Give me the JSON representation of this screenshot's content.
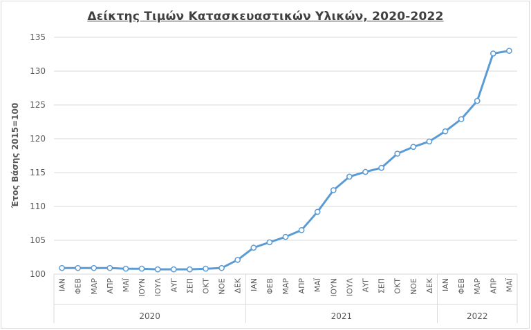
{
  "chart_data": {
    "type": "line",
    "title": "Δείκτης Τιμών Κατασκευαστικών Υλικών, 2020-2022",
    "xlabel": "",
    "ylabel": "Έτος Βάσης 2015=100",
    "ylim": [
      100,
      135
    ],
    "yticks": [
      100,
      105,
      110,
      115,
      120,
      125,
      130,
      135
    ],
    "grid": true,
    "legend": "none",
    "line_color": "#5b9bd5",
    "groups": [
      {
        "label": "2020",
        "count": 12
      },
      {
        "label": "2021",
        "count": 12
      },
      {
        "label": "2022",
        "count": 5
      }
    ],
    "categories": [
      "ΙΑΝ",
      "ΦΕΒ",
      "ΜΑΡ",
      "ΑΠΡ",
      "ΜΑΪ",
      "ΙΟΥΝ",
      "ΙΟΥΛ",
      "ΑΥΓ",
      "ΣΕΠ",
      "ΟΚΤ",
      "ΝΟΕ",
      "ΔΕΚ",
      "ΙΑΝ",
      "ΦΕΒ",
      "ΜΑΡ",
      "ΑΠΡ",
      "ΜΑΪ",
      "ΙΟΥΝ",
      "ΙΟΥΛ",
      "ΑΥΓ",
      "ΣΕΠ",
      "ΟΚΤ",
      "ΝΟΕ",
      "ΔΕΚ",
      "ΙΑΝ",
      "ΦΕΒ",
      "ΜΑΡ",
      "ΑΠΡ",
      "ΜΑΪ"
    ],
    "values": [
      100.9,
      100.9,
      100.9,
      100.9,
      100.8,
      100.8,
      100.7,
      100.7,
      100.7,
      100.8,
      100.9,
      102.1,
      103.9,
      104.7,
      105.5,
      106.5,
      109.2,
      112.4,
      114.4,
      115.1,
      115.7,
      117.8,
      118.8,
      119.6,
      121.1,
      122.9,
      125.6,
      132.6,
      133.0
    ]
  }
}
